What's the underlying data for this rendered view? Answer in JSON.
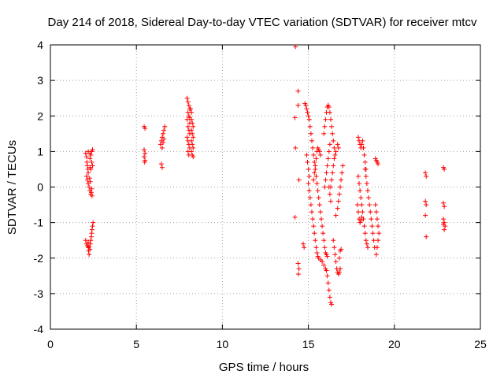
{
  "chart_data": {
    "type": "scatter",
    "title": "Day 214 of 2018, Sidereal Day-to-day VTEC variation (SDTVAR) for receiver mtcv",
    "xlabel": "GPS time / hours",
    "ylabel": "SDTVAR / TECUs",
    "xlim": [
      0,
      25
    ],
    "ylim": [
      -4,
      4
    ],
    "xticks": [
      0,
      5,
      10,
      15,
      20,
      25
    ],
    "yticks": [
      -4,
      -3,
      -2,
      -1,
      0,
      1,
      2,
      3,
      4
    ],
    "xtick_labels": [
      "0",
      "5",
      "10",
      "15",
      "20",
      "25"
    ],
    "ytick_labels": [
      "-4",
      "-3",
      "-2",
      "-1",
      "0",
      "1",
      "2",
      "3",
      "4"
    ],
    "grid": true,
    "marker": "+",
    "color": "#ff0000",
    "series": [
      {
        "name": "SDTVAR",
        "points": [
          [
            2.05,
            0.95
          ],
          [
            2.1,
            0.85
          ],
          [
            2.12,
            0.7
          ],
          [
            2.15,
            0.6
          ],
          [
            2.18,
            0.5
          ],
          [
            2.2,
            0.4
          ],
          [
            2.1,
            0.3
          ],
          [
            2.15,
            0.2
          ],
          [
            2.2,
            0.1
          ],
          [
            2.25,
            0.0
          ],
          [
            2.3,
            -0.1
          ],
          [
            2.35,
            -0.2
          ],
          [
            2.28,
            0.25
          ],
          [
            2.32,
            0.15
          ],
          [
            2.2,
            1.0
          ],
          [
            2.3,
            0.95
          ],
          [
            2.4,
            1.0
          ],
          [
            2.45,
            1.05
          ],
          [
            2.35,
            0.9
          ],
          [
            2.3,
            0.8
          ],
          [
            2.4,
            0.7
          ],
          [
            2.45,
            0.6
          ],
          [
            2.35,
            0.5
          ],
          [
            2.3,
            0.55
          ],
          [
            2.4,
            -0.05
          ],
          [
            2.38,
            -0.15
          ],
          [
            2.42,
            -0.25
          ],
          [
            2.05,
            -1.5
          ],
          [
            2.1,
            -1.6
          ],
          [
            2.15,
            -1.65
          ],
          [
            2.2,
            -1.7
          ],
          [
            2.22,
            -1.8
          ],
          [
            2.25,
            -1.9
          ],
          [
            2.3,
            -1.75
          ],
          [
            2.32,
            -1.6
          ],
          [
            2.35,
            -1.5
          ],
          [
            2.38,
            -1.4
          ],
          [
            2.4,
            -1.3
          ],
          [
            2.42,
            -1.2
          ],
          [
            2.45,
            -1.1
          ],
          [
            2.48,
            -1.0
          ],
          [
            2.2,
            -1.55
          ],
          [
            2.25,
            -1.68
          ],
          [
            5.45,
            1.7
          ],
          [
            5.5,
            1.65
          ],
          [
            5.45,
            1.05
          ],
          [
            5.5,
            0.95
          ],
          [
            5.45,
            0.85
          ],
          [
            5.5,
            0.75
          ],
          [
            5.48,
            0.7
          ],
          [
            6.4,
            1.2
          ],
          [
            6.45,
            1.3
          ],
          [
            6.5,
            1.4
          ],
          [
            6.55,
            1.5
          ],
          [
            6.6,
            1.6
          ],
          [
            6.65,
            1.7
          ],
          [
            6.5,
            1.1
          ],
          [
            6.55,
            1.25
          ],
          [
            6.6,
            1.35
          ],
          [
            6.45,
            0.65
          ],
          [
            6.5,
            0.55
          ],
          [
            7.95,
            2.5
          ],
          [
            8.0,
            2.4
          ],
          [
            8.05,
            2.3
          ],
          [
            8.1,
            2.2
          ],
          [
            8.0,
            2.1
          ],
          [
            8.05,
            2.0
          ],
          [
            7.95,
            1.9
          ],
          [
            8.1,
            1.8
          ],
          [
            8.0,
            1.7
          ],
          [
            8.05,
            1.6
          ],
          [
            8.1,
            1.5
          ],
          [
            7.95,
            1.4
          ],
          [
            8.0,
            1.3
          ],
          [
            8.05,
            1.2
          ],
          [
            8.1,
            1.1
          ],
          [
            8.0,
            1.0
          ],
          [
            8.05,
            0.9
          ],
          [
            8.2,
            1.9
          ],
          [
            8.25,
            1.8
          ],
          [
            8.3,
            1.7
          ],
          [
            8.2,
            1.6
          ],
          [
            8.25,
            1.5
          ],
          [
            8.3,
            1.4
          ],
          [
            8.2,
            1.3
          ],
          [
            8.25,
            1.2
          ],
          [
            8.3,
            1.1
          ],
          [
            8.2,
            1.0
          ],
          [
            8.25,
            0.9
          ],
          [
            8.3,
            0.85
          ],
          [
            8.15,
            2.2
          ],
          [
            8.2,
            2.1
          ],
          [
            8.1,
            1.95
          ],
          [
            14.25,
            3.95
          ],
          [
            14.22,
            1.95
          ],
          [
            14.25,
            1.1
          ],
          [
            14.22,
            -0.85
          ],
          [
            14.4,
            2.7
          ],
          [
            14.4,
            2.3
          ],
          [
            14.45,
            0.2
          ],
          [
            14.4,
            -2.15
          ],
          [
            14.45,
            -2.3
          ],
          [
            14.42,
            -2.45
          ],
          [
            14.7,
            -1.6
          ],
          [
            14.75,
            -1.7
          ],
          [
            14.8,
            2.35
          ],
          [
            14.85,
            2.3
          ],
          [
            14.9,
            2.2
          ],
          [
            14.95,
            2.1
          ],
          [
            15.0,
            2.0
          ],
          [
            15.05,
            1.9
          ],
          [
            15.1,
            1.7
          ],
          [
            15.15,
            1.5
          ],
          [
            15.2,
            1.3
          ],
          [
            15.25,
            1.1
          ],
          [
            15.3,
            0.9
          ],
          [
            15.35,
            0.7
          ],
          [
            15.4,
            0.5
          ],
          [
            15.45,
            0.3
          ],
          [
            15.5,
            0.1
          ],
          [
            15.55,
            -0.1
          ],
          [
            15.6,
            -0.3
          ],
          [
            15.65,
            -0.5
          ],
          [
            15.7,
            -0.7
          ],
          [
            14.9,
            0.9
          ],
          [
            14.95,
            0.7
          ],
          [
            15.0,
            0.5
          ],
          [
            15.05,
            0.3
          ],
          [
            15.0,
            0.1
          ],
          [
            15.05,
            -0.1
          ],
          [
            15.1,
            -0.3
          ],
          [
            15.15,
            -0.5
          ],
          [
            15.2,
            -0.7
          ],
          [
            15.25,
            -0.9
          ],
          [
            15.3,
            -1.1
          ],
          [
            15.35,
            -1.3
          ],
          [
            15.4,
            -1.5
          ],
          [
            15.45,
            -1.7
          ],
          [
            15.5,
            -1.85
          ],
          [
            15.55,
            -1.95
          ],
          [
            15.3,
            0.2
          ],
          [
            15.35,
            0.4
          ],
          [
            15.4,
            0.6
          ],
          [
            15.45,
            0.8
          ],
          [
            15.5,
            1.0
          ],
          [
            15.55,
            1.1
          ],
          [
            15.6,
            1.05
          ],
          [
            15.65,
            1.0
          ],
          [
            15.7,
            0.9
          ],
          [
            15.6,
            -2.0
          ],
          [
            15.7,
            -2.05
          ],
          [
            15.8,
            -2.1
          ],
          [
            15.9,
            -2.2
          ],
          [
            16.0,
            -2.3
          ],
          [
            16.05,
            -2.35
          ],
          [
            16.1,
            -2.5
          ],
          [
            16.15,
            -2.7
          ],
          [
            16.2,
            -2.9
          ],
          [
            16.25,
            -3.1
          ],
          [
            16.3,
            -3.25
          ],
          [
            16.35,
            -3.3
          ],
          [
            15.75,
            -0.9
          ],
          [
            15.8,
            -1.1
          ],
          [
            15.85,
            -1.3
          ],
          [
            15.9,
            -1.5
          ],
          [
            15.95,
            -1.7
          ],
          [
            16.0,
            -1.85
          ],
          [
            16.05,
            -1.9
          ],
          [
            16.1,
            -1.95
          ],
          [
            15.9,
            1.5
          ],
          [
            15.95,
            1.7
          ],
          [
            16.0,
            1.9
          ],
          [
            16.05,
            2.1
          ],
          [
            16.1,
            2.25
          ],
          [
            16.15,
            2.3
          ],
          [
            16.2,
            2.25
          ],
          [
            16.25,
            2.1
          ],
          [
            16.3,
            1.9
          ],
          [
            16.35,
            1.7
          ],
          [
            16.4,
            1.5
          ],
          [
            16.45,
            1.3
          ],
          [
            16.5,
            1.1
          ],
          [
            16.55,
            0.9
          ],
          [
            15.95,
            0.0
          ],
          [
            16.0,
            0.2
          ],
          [
            16.05,
            0.4
          ],
          [
            16.1,
            0.6
          ],
          [
            16.15,
            0.8
          ],
          [
            16.2,
            1.0
          ],
          [
            16.25,
            1.2
          ],
          [
            16.3,
            0.0
          ],
          [
            16.35,
            0.2
          ],
          [
            16.4,
            0.4
          ],
          [
            16.45,
            0.6
          ],
          [
            16.5,
            0.8
          ],
          [
            16.6,
            1.0
          ],
          [
            16.7,
            1.2
          ],
          [
            16.75,
            1.1
          ],
          [
            16.2,
            0.0
          ],
          [
            16.25,
            -0.2
          ],
          [
            16.3,
            -0.4
          ],
          [
            16.45,
            -1.5
          ],
          [
            16.5,
            -1.7
          ],
          [
            16.55,
            -1.9
          ],
          [
            16.6,
            -2.1
          ],
          [
            16.65,
            -2.3
          ],
          [
            16.7,
            -2.4
          ],
          [
            16.75,
            -2.45
          ],
          [
            16.8,
            -2.4
          ],
          [
            16.85,
            -2.3
          ],
          [
            16.8,
            -2.0
          ],
          [
            16.85,
            -1.8
          ],
          [
            16.9,
            -1.75
          ],
          [
            16.6,
            -0.8
          ],
          [
            16.7,
            -0.6
          ],
          [
            16.75,
            -0.4
          ],
          [
            16.8,
            -0.2
          ],
          [
            16.85,
            0.0
          ],
          [
            16.9,
            0.2
          ],
          [
            16.95,
            0.4
          ],
          [
            17.0,
            0.6
          ],
          [
            17.9,
            1.4
          ],
          [
            17.95,
            1.3
          ],
          [
            18.0,
            1.2
          ],
          [
            18.05,
            1.1
          ],
          [
            18.1,
            1.2
          ],
          [
            18.15,
            1.3
          ],
          [
            18.2,
            1.1
          ],
          [
            18.25,
            0.9
          ],
          [
            18.3,
            0.7
          ],
          [
            18.35,
            0.5
          ],
          [
            17.9,
            0.3
          ],
          [
            17.95,
            0.1
          ],
          [
            18.0,
            -0.1
          ],
          [
            18.05,
            -0.3
          ],
          [
            18.1,
            -0.5
          ],
          [
            18.15,
            -0.7
          ],
          [
            18.2,
            -0.9
          ],
          [
            18.25,
            -1.1
          ],
          [
            18.3,
            -1.3
          ],
          [
            18.35,
            -1.5
          ],
          [
            18.4,
            -1.6
          ],
          [
            18.45,
            -1.7
          ],
          [
            17.85,
            -0.5
          ],
          [
            17.9,
            -0.7
          ],
          [
            17.95,
            -0.9
          ],
          [
            18.0,
            -1.0
          ],
          [
            18.05,
            -0.95
          ],
          [
            18.1,
            -0.85
          ],
          [
            18.3,
            0.5
          ],
          [
            18.35,
            0.3
          ],
          [
            18.4,
            0.1
          ],
          [
            18.45,
            -0.1
          ],
          [
            18.5,
            -0.3
          ],
          [
            18.55,
            -0.5
          ],
          [
            18.6,
            -0.7
          ],
          [
            18.65,
            -0.9
          ],
          [
            18.7,
            -1.1
          ],
          [
            18.75,
            -1.3
          ],
          [
            18.8,
            -1.5
          ],
          [
            18.85,
            -1.7
          ],
          [
            18.9,
            -0.5
          ],
          [
            18.95,
            -0.7
          ],
          [
            19.0,
            -0.9
          ],
          [
            19.05,
            -1.1
          ],
          [
            19.1,
            -1.3
          ],
          [
            19.05,
            -1.5
          ],
          [
            19.0,
            -1.7
          ],
          [
            18.95,
            -1.9
          ],
          [
            18.9,
            0.8
          ],
          [
            18.95,
            0.75
          ],
          [
            19.0,
            0.7
          ],
          [
            19.05,
            0.65
          ],
          [
            21.8,
            0.4
          ],
          [
            21.85,
            0.3
          ],
          [
            21.8,
            -0.4
          ],
          [
            21.85,
            -0.5
          ],
          [
            21.8,
            -0.8
          ],
          [
            21.85,
            -1.4
          ],
          [
            22.85,
            0.55
          ],
          [
            22.9,
            0.5
          ],
          [
            22.85,
            -0.45
          ],
          [
            22.9,
            -0.55
          ],
          [
            22.85,
            -0.9
          ],
          [
            22.9,
            -1.0
          ],
          [
            22.95,
            -1.1
          ],
          [
            22.9,
            -1.2
          ],
          [
            22.85,
            -1.05
          ]
        ]
      }
    ]
  }
}
